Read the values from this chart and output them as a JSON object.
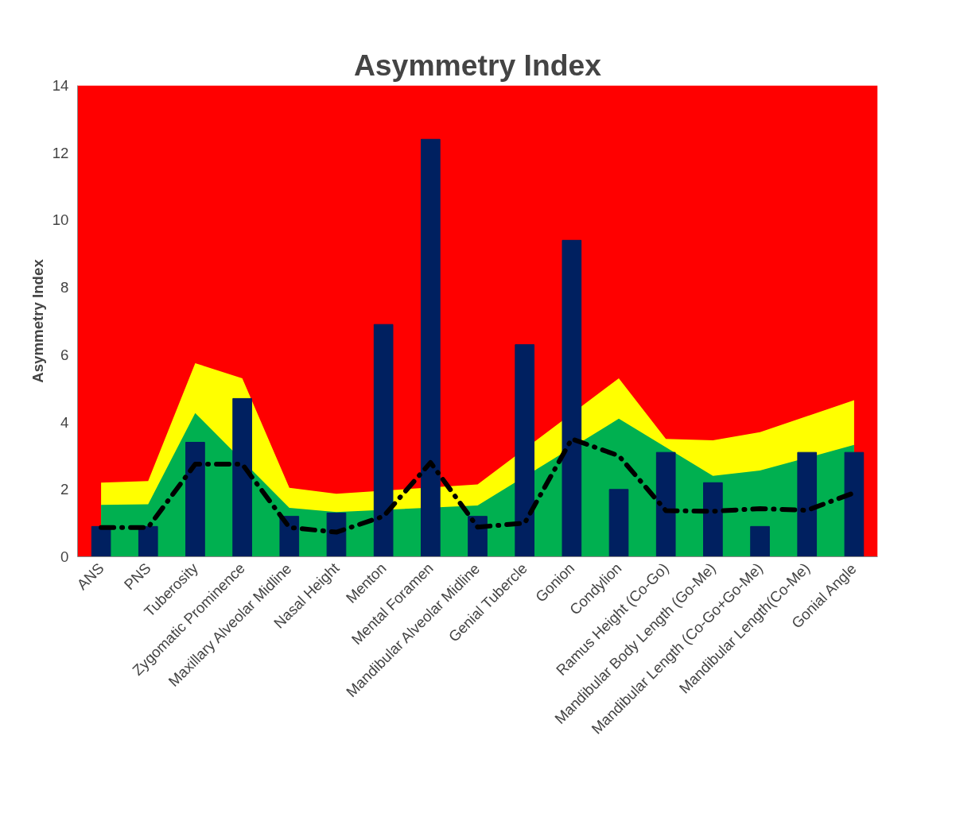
{
  "chart_data": {
    "type": "bar",
    "title": "Asymmetry Index",
    "ylabel": "Asymmetry Index",
    "categories": [
      "ANS",
      "PNS",
      "Tuberosity",
      "Zygomatic Prominence",
      "Maxillary Alveolar Midline",
      "Nasal Height",
      "Menton",
      "Mental Foramen",
      "Mandibular Alveolar Midline",
      "Genial Tubercle",
      "Gonion",
      "Condylion",
      "Ramus Height (Co-Go)",
      "Mandibular Body Length (Go-Me)",
      "Mandibular Length (Co-Go+Go-Me)",
      "Mandibular Length(Co-Me)",
      "Gonial Angle"
    ],
    "series": [
      {
        "type": "area",
        "color": "#ffff00",
        "values": [
          2.2,
          2.25,
          5.75,
          5.3,
          2.05,
          1.87,
          null,
          null,
          2.15,
          null,
          null,
          5.3,
          3.5,
          3.46,
          3.7,
          null,
          4.65
        ]
      },
      {
        "type": "area",
        "color": "#00b050",
        "values": [
          1.54,
          1.56,
          4.27,
          null,
          1.45,
          1.33,
          null,
          null,
          1.52,
          null,
          null,
          4.1,
          null,
          2.4,
          2.56,
          null,
          3.32
        ]
      },
      {
        "color": "#002060",
        "values": [
          0.9,
          0.9,
          3.4,
          4.7,
          1.2,
          1.3,
          6.9,
          12.4,
          1.2,
          6.3,
          9.4,
          2.0,
          3.1,
          2.2,
          0.9,
          3.1,
          3.1
        ]
      },
      {
        "type": "line",
        "color": "#000000",
        "line_style": "dashed",
        "values": [
          0.87,
          0.87,
          2.75,
          2.75,
          0.87,
          0.73,
          1.2,
          2.8,
          0.88,
          1.0,
          3.5,
          3.0,
          1.37,
          1.35,
          1.43,
          1.38,
          1.9
        ]
      }
    ],
    "bands": [
      {
        "axis": "y",
        "from": 0,
        "to": 14,
        "color": "#ff0000"
      }
    ],
    "ylim": [
      0,
      14
    ],
    "yticks": [
      0,
      2,
      4,
      6,
      8,
      10,
      12,
      14
    ],
    "grid": false
  }
}
